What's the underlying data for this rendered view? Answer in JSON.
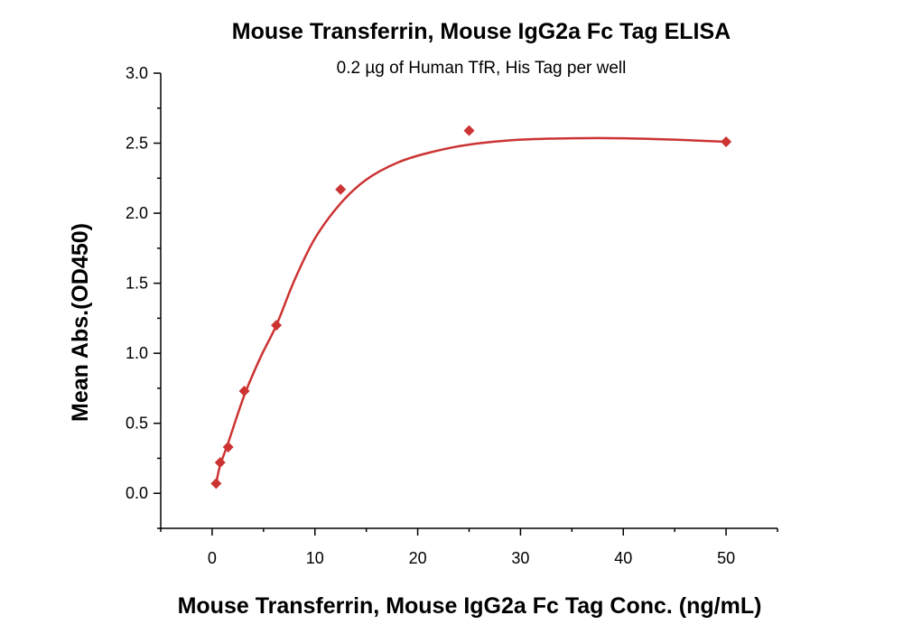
{
  "chart_data": {
    "type": "scatter",
    "title": "Mouse Transferrin, Mouse IgG2a Fc Tag ELISA",
    "subtitle": "0.2 µg of Human TfR, His Tag per well",
    "xlabel": "Mouse Transferrin, Mouse IgG2a Fc Tag Conc. (ng/mL)",
    "ylabel": "Mean Abs.(OD450)",
    "xlim": [
      -5,
      55
    ],
    "ylim": [
      -0.25,
      3.0
    ],
    "x_ticks": [
      0,
      10,
      20,
      30,
      40,
      50
    ],
    "y_ticks": [
      0.0,
      0.5,
      1.0,
      1.5,
      2.0,
      2.5,
      3.0
    ],
    "x_tick_labels": [
      "0",
      "10",
      "20",
      "30",
      "40",
      "50"
    ],
    "y_tick_labels": [
      "0.0",
      "0.5",
      "1.0",
      "1.5",
      "2.0",
      "2.5",
      "3.0"
    ],
    "grid": false,
    "legend": "none",
    "color": "#cc3333",
    "series": [
      {
        "marker": "diamond",
        "x": [
          0.39,
          0.78,
          1.56,
          3.13,
          6.25,
          12.5,
          25,
          50
        ],
        "y": [
          0.07,
          0.22,
          0.33,
          0.73,
          1.2,
          2.17,
          2.59,
          2.51
        ]
      }
    ],
    "fit_curve": {
      "type": "line",
      "x": [
        0.39,
        0.78,
        1.56,
        3.13,
        4.7,
        6.25,
        8,
        10,
        12.5,
        15,
        18,
        21,
        25,
        30,
        35,
        40,
        45,
        50
      ],
      "y": [
        0.07,
        0.2,
        0.36,
        0.7,
        0.97,
        1.2,
        1.52,
        1.82,
        2.07,
        2.24,
        2.36,
        2.43,
        2.49,
        2.525,
        2.535,
        2.535,
        2.525,
        2.51
      ]
    }
  }
}
